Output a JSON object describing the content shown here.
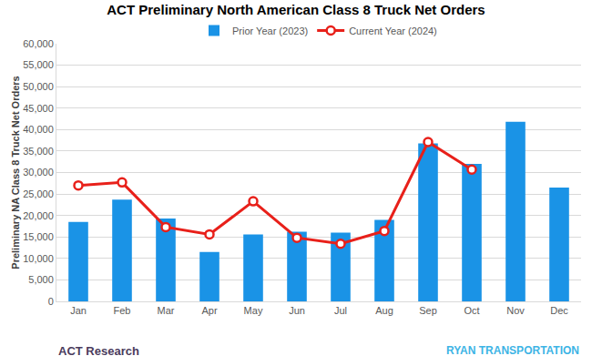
{
  "chart_data": {
    "type": "bar",
    "title": "ACT Preliminary North American Class 8 Truck Net Orders",
    "y_label": "Preliminary NA Class 8 Truck Net Orders",
    "categories": [
      "Jan",
      "Feb",
      "Mar",
      "Apr",
      "May",
      "Jun",
      "Jul",
      "Aug",
      "Sep",
      "Oct",
      "Nov",
      "Dec"
    ],
    "series": [
      {
        "name": "Prior Year (2023)",
        "type": "bar",
        "color": "#1a93e6",
        "values": [
          18500,
          23700,
          19300,
          11500,
          15600,
          16200,
          16000,
          19000,
          36800,
          32000,
          41800,
          26500
        ]
      },
      {
        "name": "Current Year (2024)",
        "type": "line",
        "color": "#e8201a",
        "marker": "circle",
        "values": [
          27000,
          27700,
          17300,
          15600,
          23300,
          14800,
          13400,
          16400,
          37100,
          30700,
          null,
          null
        ]
      }
    ],
    "ylim": [
      0,
      60000
    ],
    "yticks": [
      0,
      {
        "value": 5000,
        "label": "5,000"
      },
      {
        "value": 10000,
        "label": "10,000"
      },
      {
        "value": 15000,
        "label": "15,000"
      },
      {
        "value": 20000,
        "label": "20,000"
      },
      {
        "value": 25000,
        "label": "25,000"
      },
      {
        "value": 30000,
        "label": "30,000"
      },
      {
        "value": 35000,
        "label": "35,000"
      },
      {
        "value": 40000,
        "label": "40,000"
      },
      {
        "value": 45000,
        "label": "45,000"
      },
      {
        "value": 50000,
        "label": "50,000"
      },
      {
        "value": 55000,
        "label": "55,000"
      },
      {
        "value": 60000,
        "label": "60,000"
      }
    ],
    "grid": true,
    "legend": "top",
    "annotations": [
      "ACT Research",
      "RYAN TRANSPORTATION"
    ]
  }
}
